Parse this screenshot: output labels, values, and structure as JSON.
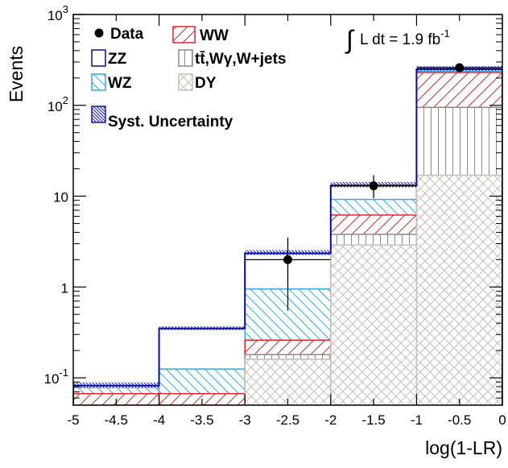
{
  "chart_data": {
    "type": "bar",
    "subtype": "stacked-histogram",
    "x_edges": [
      -5,
      -4,
      -3,
      -2,
      -1,
      0
    ],
    "xlim": [
      -5,
      0
    ],
    "ylim": [
      0.05,
      1000
    ],
    "y_scale": "log",
    "xlabel": "log(1-LR)",
    "ylabel": "Events",
    "annotation": {
      "integral": "∫",
      "text": "L dt = 1.9 fb",
      "superscript": "-1"
    },
    "x_ticks": [
      "-5",
      "-4.5",
      "-4",
      "-3.5",
      "-3",
      "-2.5",
      "-2",
      "-1.5",
      "-1",
      "-0.5",
      "0"
    ],
    "y_ticks": [
      {
        "value": 0.1,
        "base": "10",
        "exp": "-1"
      },
      {
        "value": 1,
        "base": "1",
        "exp": ""
      },
      {
        "value": 10,
        "base": "10",
        "exp": ""
      },
      {
        "value": 100,
        "base": "10",
        "exp": "2"
      },
      {
        "value": 1000,
        "base": "10",
        "exp": "3"
      }
    ],
    "stack_cumulative": {
      "DY": [
        0,
        0,
        0.16,
        2.9,
        17
      ],
      "ttbar": [
        0,
        0,
        0.18,
        3.8,
        95
      ],
      "WW": [
        0.067,
        0.067,
        0.26,
        6.2,
        230
      ],
      "WZ": [
        0.078,
        0.125,
        0.95,
        9.2,
        238
      ],
      "ZZ": [
        0.082,
        0.35,
        2.35,
        13.1,
        250
      ]
    },
    "syst_band": {
      "low": [
        0.078,
        0.335,
        2.25,
        12.5,
        240
      ],
      "high": [
        0.089,
        0.368,
        2.55,
        14.3,
        270
      ]
    },
    "data_points": [
      {
        "x": -2.5,
        "y": 2.0,
        "err_low": 0.55,
        "err_high": 3.5
      },
      {
        "x": -1.5,
        "y": 13,
        "err_low": 9.5,
        "err_high": 17
      },
      {
        "x": -0.5,
        "y": 260,
        "err_low": 244,
        "err_high": 276
      }
    ],
    "series": [
      {
        "key": "data",
        "name": "Data",
        "color": "#000000"
      },
      {
        "key": "WW",
        "name": "WW",
        "color": "#e8202a"
      },
      {
        "key": "ZZ",
        "name": "ZZ",
        "color": "#0a0aa8"
      },
      {
        "key": "ttbar",
        "name": "tt̄,Wγ,W+jets",
        "color": "#8a8a8a"
      },
      {
        "key": "WZ",
        "name": "WZ",
        "color": "#3aa8d8"
      },
      {
        "key": "DY",
        "name": "DY",
        "color": "#c7bdb5"
      },
      {
        "key": "syst",
        "name": "Syst. Uncertainty",
        "color": "#1a1a9c"
      }
    ],
    "legend_placement": "top-left",
    "grid": false
  }
}
